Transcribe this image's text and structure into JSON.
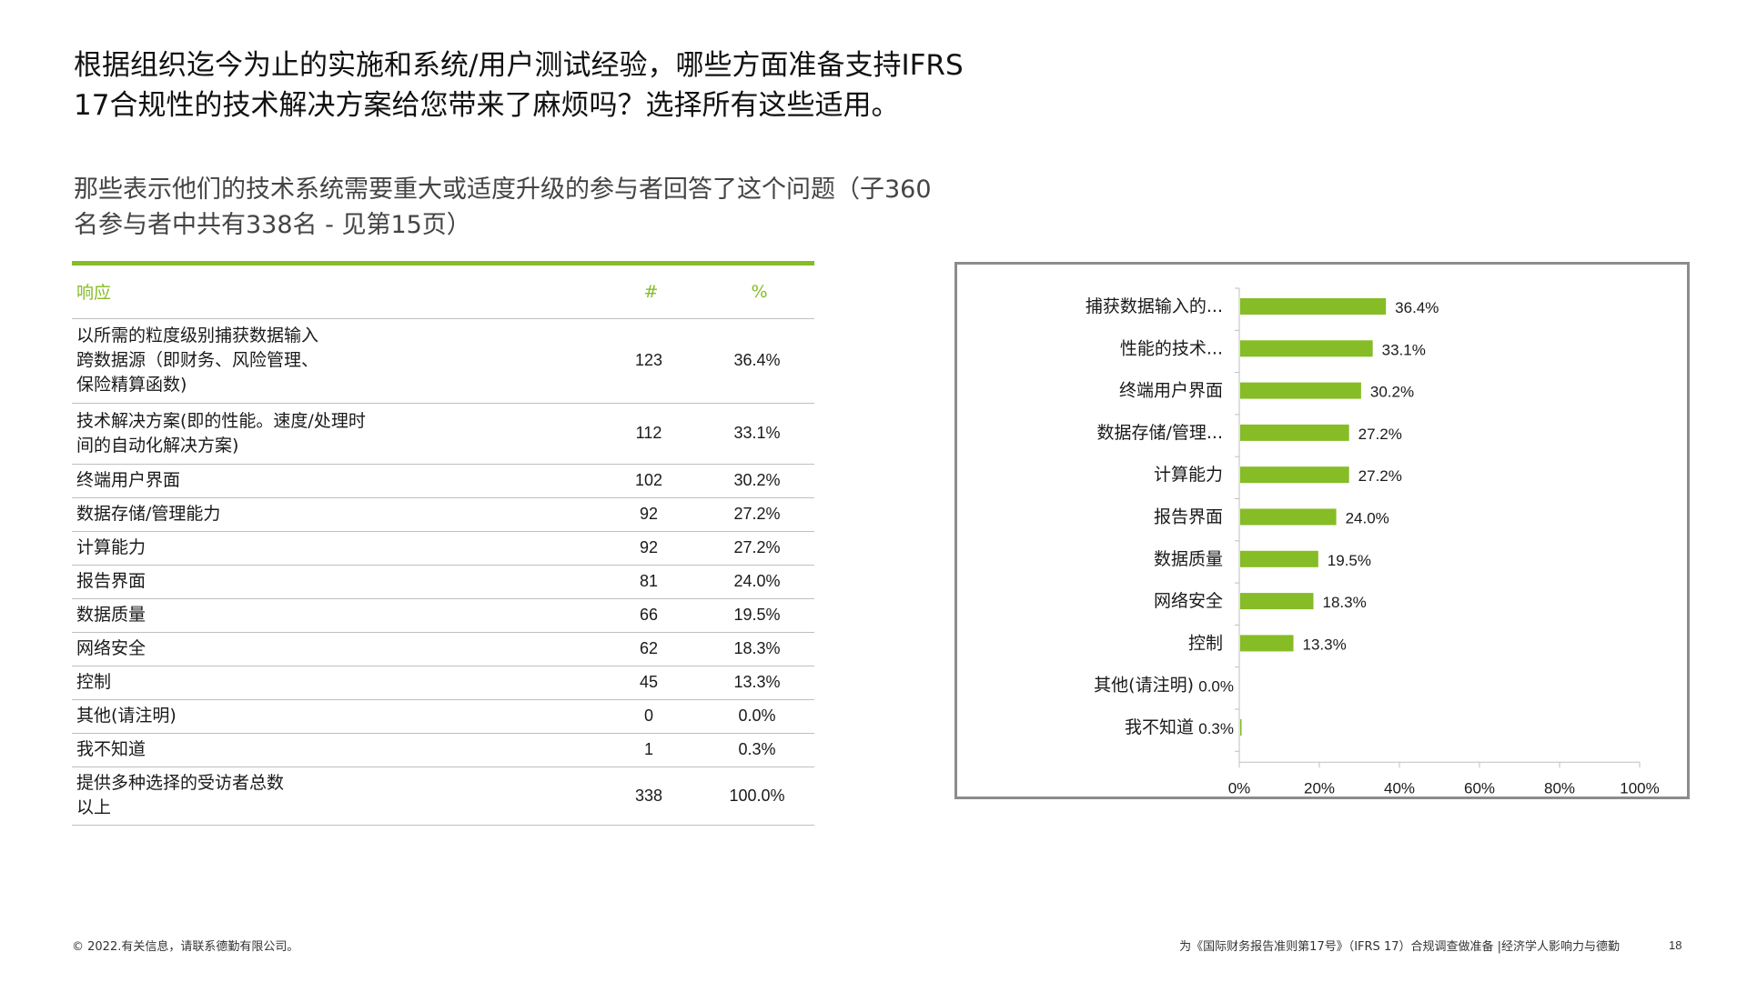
{
  "title": "根据组织迄今为止的实施和系统/用户测试经验，哪些方面准备支持IFRS 17合规性的技术解决方案给您带来了麻烦吗？选择所有这些适用。",
  "subtitle": "那些表示他们的技术系统需要重大或适度升级的参与者回答了这个问题（子360名参与者中共有338名 - 见第15页）",
  "table": {
    "headers": {
      "response": "响应",
      "count": "#",
      "percent": "%"
    },
    "rows": [
      {
        "label": "以所需的粒度级别捕获数据输入跨数据源（即财务、风险管理、保险精算函数)",
        "count": "123",
        "percent": "36.4%"
      },
      {
        "label": "技术解决方案(即的性能。速度/处理时间的自动化解决方案)",
        "count": "112",
        "percent": "33.1%"
      },
      {
        "label": "终端用户界面",
        "count": "102",
        "percent": "30.2%"
      },
      {
        "label": "数据存储/管理能力",
        "count": "92",
        "percent": "27.2%"
      },
      {
        "label": "计算能力",
        "count": "92",
        "percent": "27.2%"
      },
      {
        "label": "报告界面",
        "count": "81",
        "percent": "24.0%"
      },
      {
        "label": "数据质量",
        "count": "66",
        "percent": "19.5%"
      },
      {
        "label": "网络安全",
        "count": "62",
        "percent": "18.3%"
      },
      {
        "label": "控制",
        "count": "45",
        "percent": "13.3%"
      },
      {
        "label": "其他(请注明)",
        "count": "0",
        "percent": "0.0%"
      },
      {
        "label": "我不知道",
        "count": "1",
        "percent": "0.3%"
      },
      {
        "label": "提供多种选择的受访者总数以上",
        "count": "338",
        "percent": "100.0%"
      }
    ]
  },
  "chart_data": {
    "type": "bar",
    "orientation": "horizontal",
    "categories": [
      "捕获数据输入的...",
      "性能的技术...",
      "终端用户界面",
      "数据存储/管理...",
      "计算能力",
      "报告界面",
      "数据质量",
      "网络安全",
      "控制",
      "其他(请注明)",
      "我不知道"
    ],
    "values": [
      36.4,
      33.1,
      30.2,
      27.2,
      27.2,
      24.0,
      19.5,
      18.3,
      13.3,
      0.0,
      0.3
    ],
    "value_labels": [
      "36.4%",
      "33.1%",
      "30.2%",
      "27.2%",
      "27.2%",
      "24.0%",
      "19.5%",
      "18.3%",
      "13.3%",
      "0.0%",
      "0.3%"
    ],
    "xlim": [
      0,
      100
    ],
    "xticks": [
      "0%",
      "20%",
      "40%",
      "60%",
      "80%",
      "100%"
    ],
    "bar_color": "#86bc25",
    "grid": false,
    "title": "",
    "xlabel": "",
    "ylabel": ""
  },
  "colors": {
    "accent": "#86bc25",
    "rule": "#bfbfbf",
    "chart_border": "#8c8c8c"
  },
  "footer": {
    "copyright": "© 2022.有关信息，请联系德勤有限公司。",
    "source": "为《国际财务报告准则第17号》（IFRS 17）合规调查做准备 |经济学人影响力与德勤",
    "page": "18"
  }
}
